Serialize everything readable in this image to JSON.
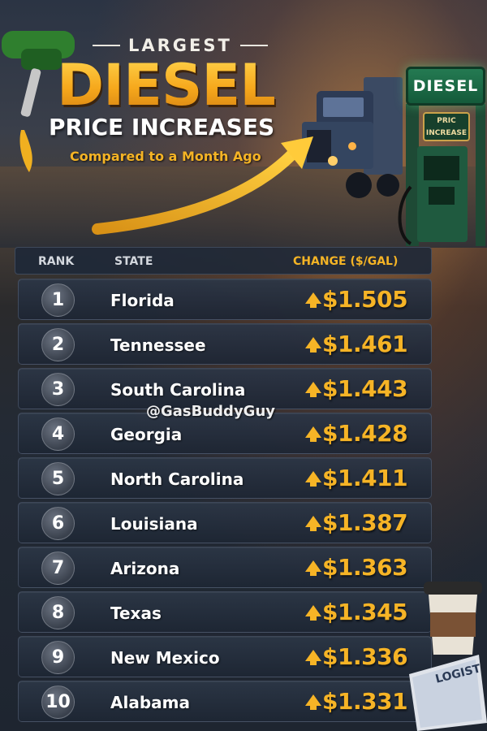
{
  "header": {
    "kicker": "LARGEST",
    "title": "DIESEL",
    "subtitle_main": "PRICE INCREASES",
    "subtitle_note": "Compared to a Month Ago",
    "pump_sign": "DIESEL",
    "pump_label_line1": "PRIC",
    "pump_label_line2": "INCREASE"
  },
  "table": {
    "columns": [
      "RANK",
      "STATE",
      "CHANGE ($/GAL)"
    ],
    "rows": [
      {
        "rank": "1",
        "state": "Florida",
        "change": "$1.505"
      },
      {
        "rank": "2",
        "state": "Tennessee",
        "change": "$1.461"
      },
      {
        "rank": "3",
        "state": "South Carolina",
        "change": "$1.443"
      },
      {
        "rank": "4",
        "state": "Georgia",
        "change": "$1.428"
      },
      {
        "rank": "5",
        "state": "North Carolina",
        "change": "$1.411"
      },
      {
        "rank": "6",
        "state": "Louisiana",
        "change": "$1.387"
      },
      {
        "rank": "7",
        "state": "Arizona",
        "change": "$1.363"
      },
      {
        "rank": "8",
        "state": "Texas",
        "change": "$1.345"
      },
      {
        "rank": "9",
        "state": "New Mexico",
        "change": "$1.336"
      },
      {
        "rank": "10",
        "state": "Alabama",
        "change": "$1.331"
      }
    ]
  },
  "watermark": "@GasBuddyGuy",
  "clipboard_text": "LOGIST",
  "colors": {
    "accent_gold": "#f5b425",
    "pump_green": "#247a52",
    "row_bg": "#2c3646"
  },
  "icons": {
    "increase": "up-arrow-icon",
    "nozzle": "fuel-nozzle-icon",
    "truck": "semi-truck-icon"
  }
}
